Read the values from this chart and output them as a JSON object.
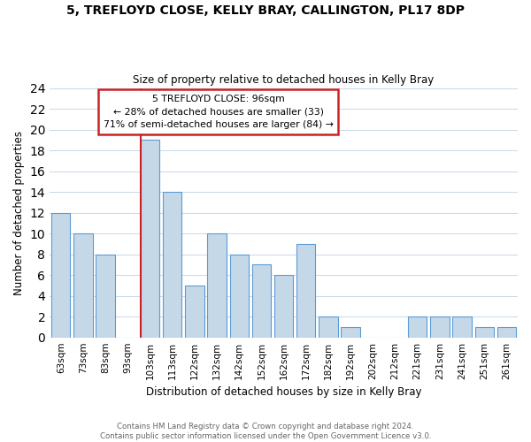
{
  "title": "5, TREFLOYD CLOSE, KELLY BRAY, CALLINGTON, PL17 8DP",
  "subtitle": "Size of property relative to detached houses in Kelly Bray",
  "xlabel": "Distribution of detached houses by size in Kelly Bray",
  "ylabel": "Number of detached properties",
  "footnote1": "Contains HM Land Registry data © Crown copyright and database right 2024.",
  "footnote2": "Contains public sector information licensed under the Open Government Licence v3.0.",
  "bar_labels": [
    "63sqm",
    "73sqm",
    "83sqm",
    "93sqm",
    "103sqm",
    "113sqm",
    "122sqm",
    "132sqm",
    "142sqm",
    "152sqm",
    "162sqm",
    "172sqm",
    "182sqm",
    "192sqm",
    "202sqm",
    "212sqm",
    "221sqm",
    "231sqm",
    "241sqm",
    "251sqm",
    "261sqm"
  ],
  "bar_values": [
    12,
    10,
    8,
    0,
    19,
    14,
    5,
    10,
    8,
    7,
    6,
    9,
    2,
    1,
    0,
    0,
    2,
    2,
    2,
    1,
    1
  ],
  "bar_color": "#c5d8e8",
  "bar_edge_color": "#5b9bd5",
  "ylim": [
    0,
    24
  ],
  "yticks": [
    0,
    2,
    4,
    6,
    8,
    10,
    12,
    14,
    16,
    18,
    20,
    22,
    24
  ],
  "property_line_idx": 4,
  "property_line_color": "#cc2222",
  "annotation_title": "5 TREFLOYD CLOSE: 96sqm",
  "annotation_line1": "← 28% of detached houses are smaller (33)",
  "annotation_line2": "71% of semi-detached houses are larger (84) →",
  "annotation_box_color": "#ffffff",
  "annotation_box_edge": "#cc2222",
  "grid_color": "#c8d8e8",
  "background_color": "#ffffff"
}
